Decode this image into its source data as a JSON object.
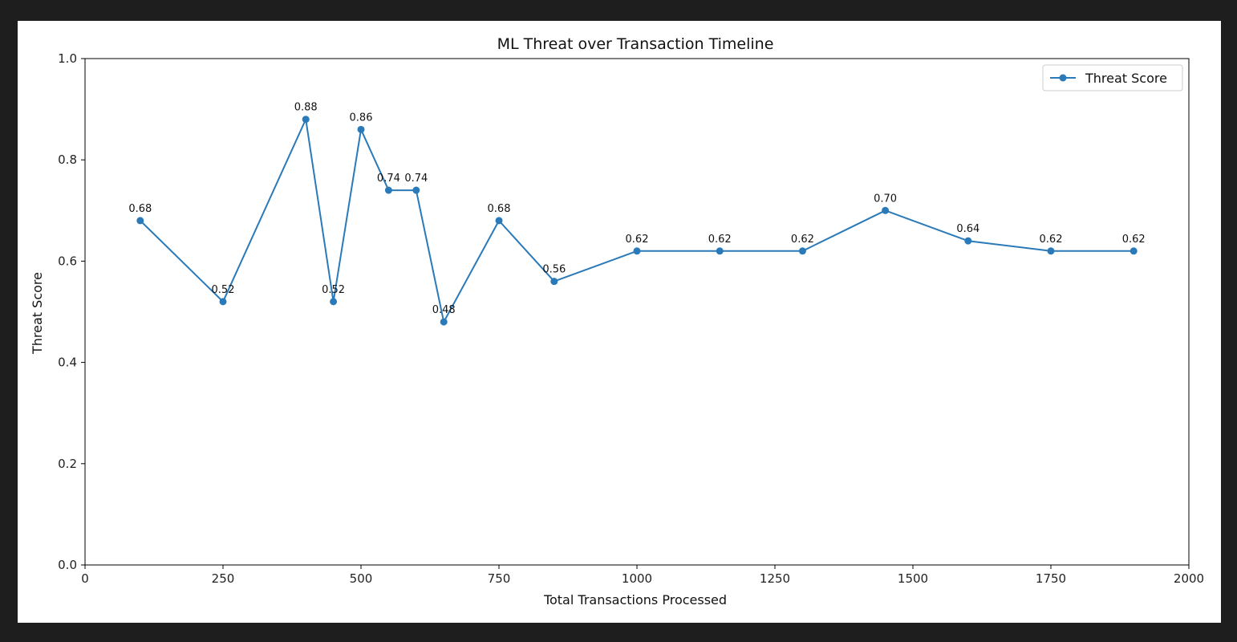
{
  "chart_data": {
    "type": "line",
    "title": "ML Threat over Transaction Timeline",
    "xlabel": "Total Transactions Processed",
    "ylabel": "Threat Score",
    "xlim": [
      0,
      2000
    ],
    "ylim": [
      0.0,
      1.0
    ],
    "x_ticks": [
      0,
      250,
      500,
      750,
      1000,
      1250,
      1500,
      1750,
      2000
    ],
    "x_tick_labels": [
      "0",
      "250",
      "500",
      "750",
      "1000",
      "1250",
      "1500",
      "1750",
      "2000"
    ],
    "y_ticks": [
      0.0,
      0.2,
      0.4,
      0.6,
      0.8,
      1.0
    ],
    "y_tick_labels": [
      "0.0",
      "0.2",
      "0.4",
      "0.6",
      "0.8",
      "1.0"
    ],
    "grid": false,
    "legend_position": "top-right",
    "series": [
      {
        "name": "Threat Score",
        "color": "#2a7ab9",
        "marker": "circle",
        "x": [
          100,
          250,
          400,
          450,
          500,
          550,
          600,
          650,
          750,
          850,
          1000,
          1150,
          1300,
          1450,
          1600,
          1750,
          1900
        ],
        "y": [
          0.68,
          0.52,
          0.88,
          0.52,
          0.86,
          0.74,
          0.74,
          0.48,
          0.68,
          0.56,
          0.62,
          0.62,
          0.62,
          0.7,
          0.64,
          0.62,
          0.62
        ],
        "labels": [
          "0.68",
          "0.52",
          "0.88",
          "0.52",
          "0.86",
          "0.74",
          "0.74",
          "0.48",
          "0.68",
          "0.56",
          "0.62",
          "0.62",
          "0.62",
          "0.70",
          "0.64",
          "0.62",
          "0.62"
        ]
      }
    ]
  }
}
